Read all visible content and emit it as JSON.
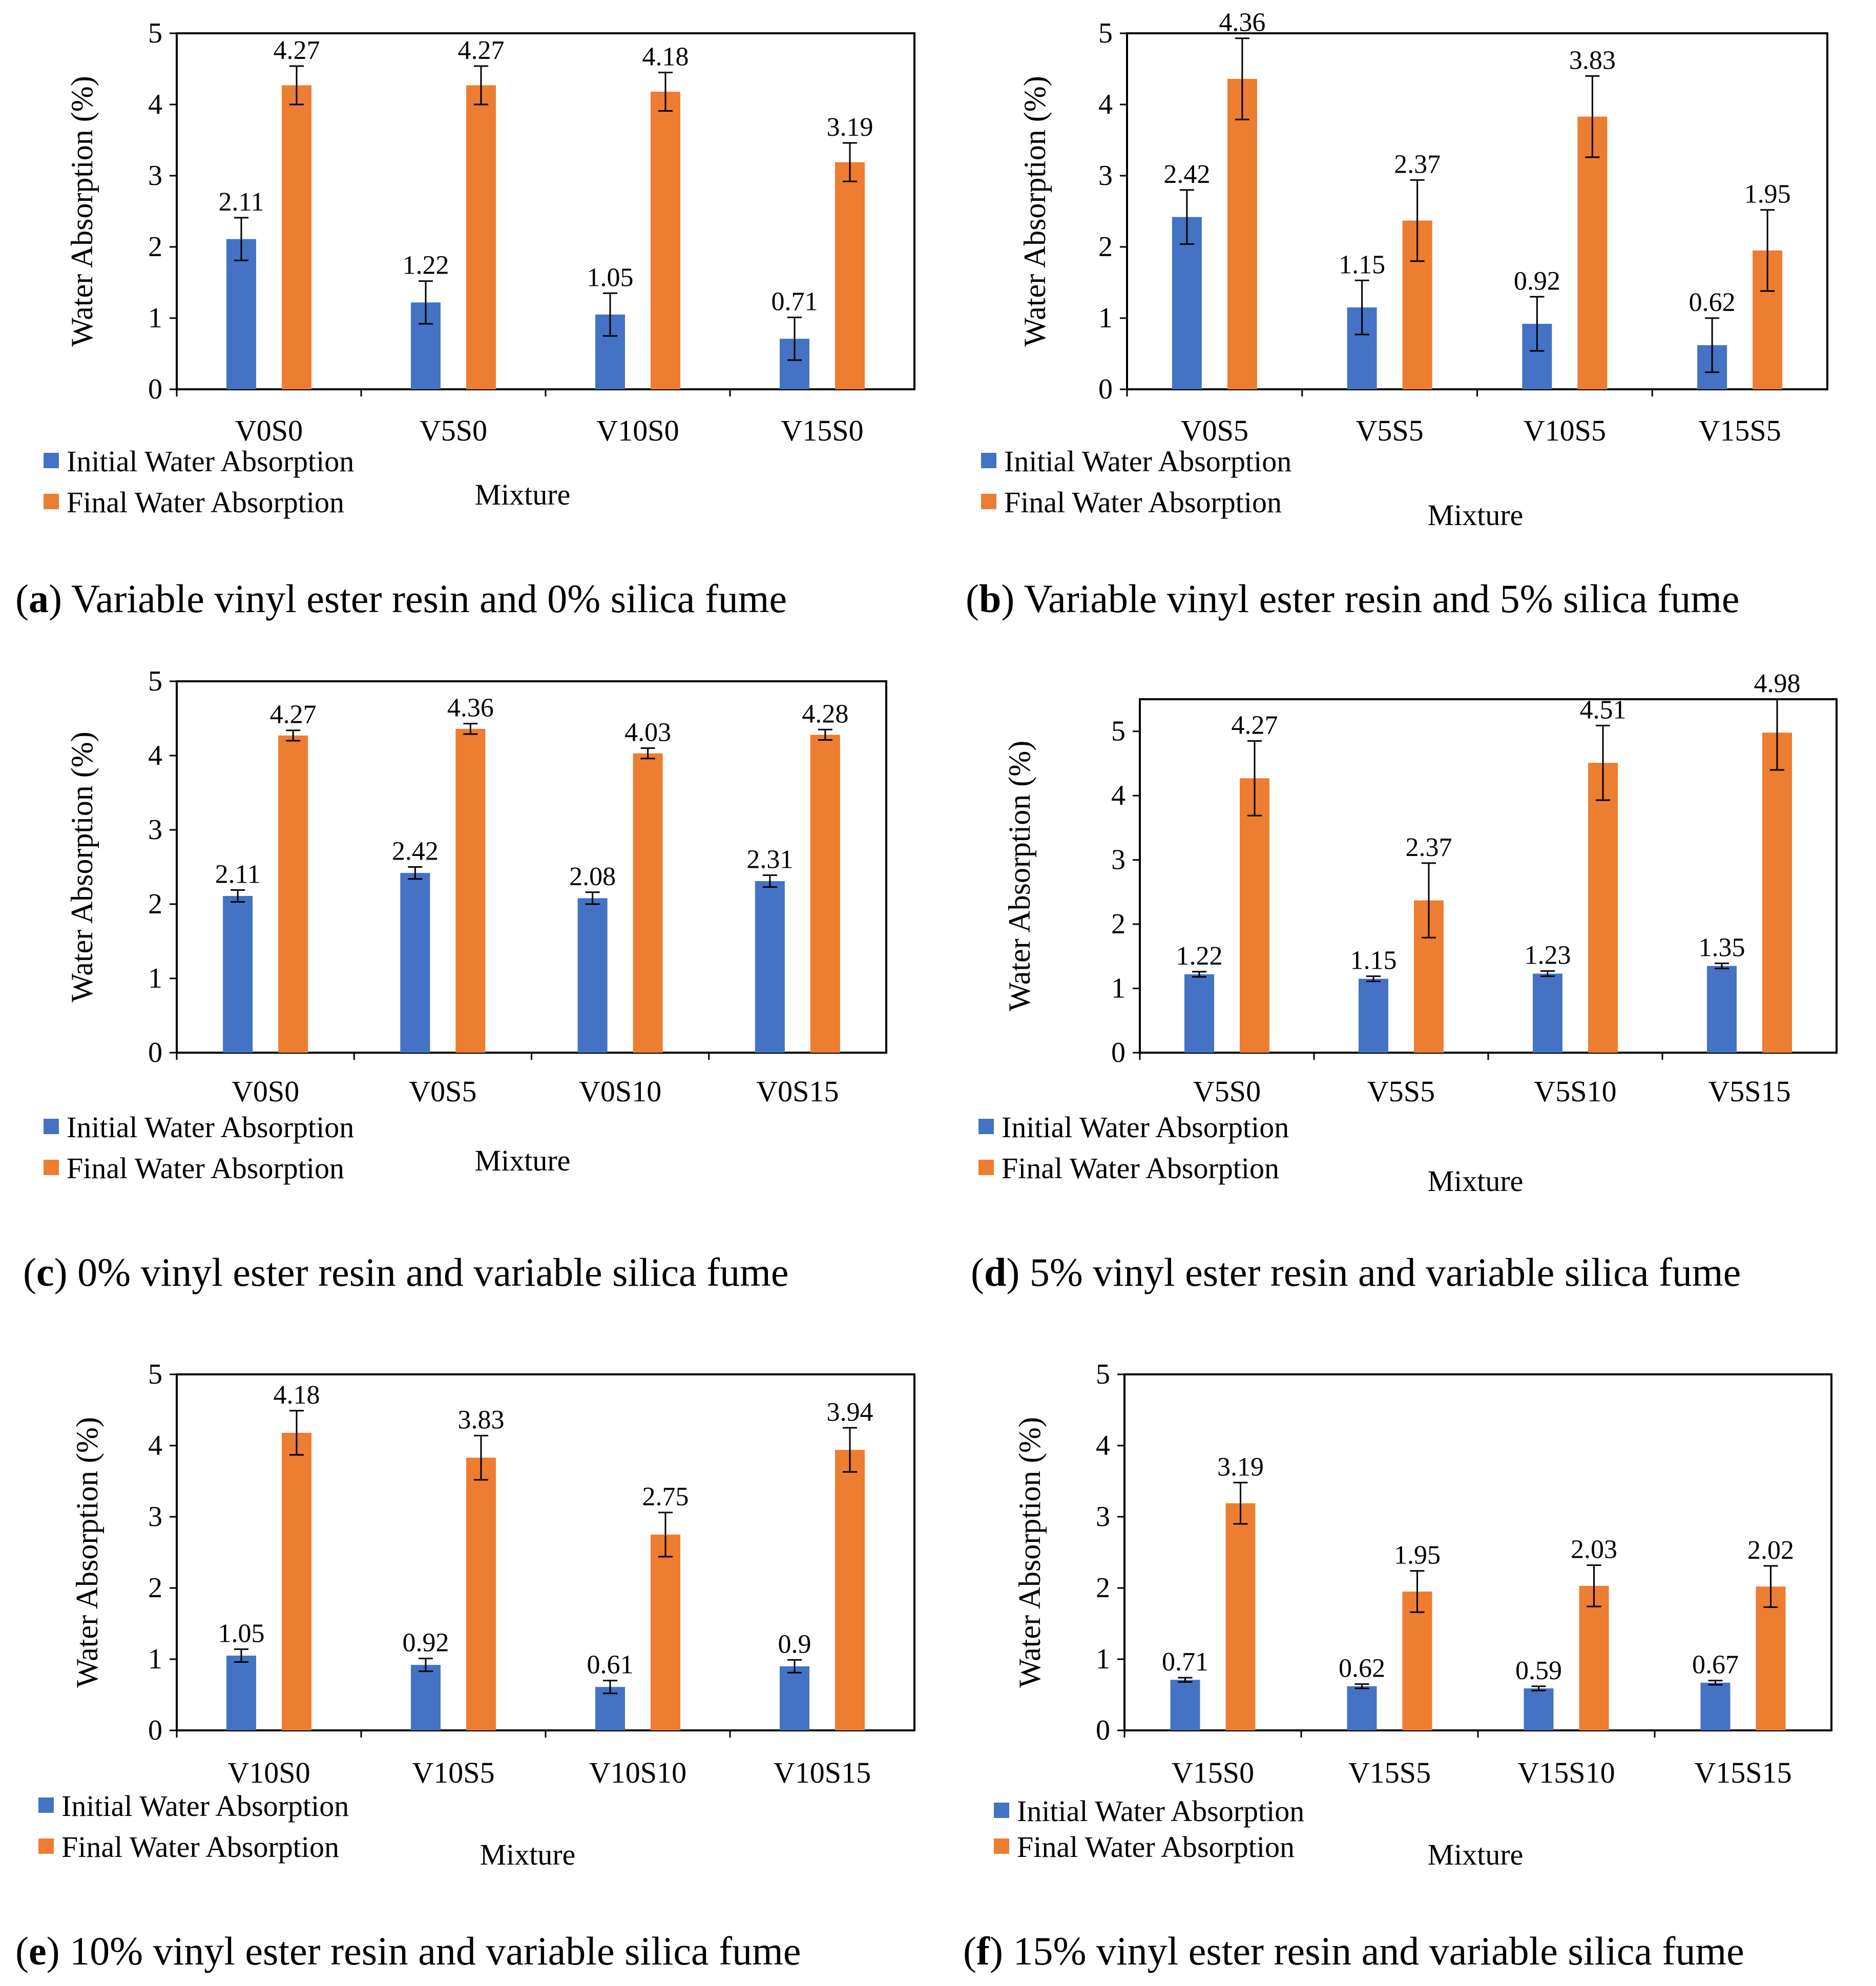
{
  "colors": {
    "initial": "#4472C4",
    "final": "#ED7D31",
    "axis": "#000000"
  },
  "chart_data": [
    {
      "id": "a",
      "type": "bar",
      "caption_letter": "a",
      "caption_text": " Variable vinyl ester resin and 0% silica fume",
      "ylabel": "Water Absorption (%)",
      "xlabel": "Mixture",
      "ylim": [
        0,
        5
      ],
      "yticks": [
        "0",
        "1",
        "2",
        "3",
        "4",
        "5"
      ],
      "categories": [
        "V0S0",
        "V5S0",
        "V10S0",
        "V15S0"
      ],
      "series": [
        {
          "name": "Initial Water Absorption",
          "values": [
            2.11,
            1.22,
            1.05,
            0.71
          ],
          "labels": [
            "2.11",
            "1.22",
            "1.05",
            "0.71"
          ],
          "errors": [
            0.3,
            0.3,
            0.3,
            0.3
          ]
        },
        {
          "name": "Final Water Absorption",
          "values": [
            4.27,
            4.27,
            4.18,
            3.19
          ],
          "labels": [
            "4.27",
            "4.27",
            "4.18",
            "3.19"
          ],
          "errors": [
            0.27,
            0.27,
            0.27,
            0.27
          ]
        }
      ]
    },
    {
      "id": "b",
      "type": "bar",
      "caption_letter": "b",
      "caption_text": " Variable vinyl ester resin and 5% silica fume",
      "ylabel": "Water Absorption (%)",
      "xlabel": "Mixture",
      "ylim": [
        0,
        5
      ],
      "yticks": [
        "0",
        "1",
        "2",
        "3",
        "4",
        "5"
      ],
      "categories": [
        "V0S5",
        "V5S5",
        "V10S5",
        "V15S5"
      ],
      "series": [
        {
          "name": "Initial Water Absorption",
          "values": [
            2.42,
            1.15,
            0.92,
            0.62
          ],
          "labels": [
            "2.42",
            "1.15",
            "0.92",
            "0.62"
          ],
          "errors": [
            0.38,
            0.38,
            0.38,
            0.38
          ]
        },
        {
          "name": "Final Water Absorption",
          "values": [
            4.36,
            2.37,
            3.83,
            1.95
          ],
          "labels": [
            "4.36",
            "2.37",
            "3.83",
            "1.95"
          ],
          "errors": [
            0.57,
            0.57,
            0.57,
            0.57
          ]
        }
      ]
    },
    {
      "id": "c",
      "type": "bar",
      "caption_letter": "c",
      "caption_text": " 0% vinyl ester resin and variable silica fume",
      "ylabel": "Water Absorption (%)",
      "xlabel": "Mixture",
      "ylim": [
        0,
        5
      ],
      "yticks": [
        "0",
        "1",
        "2",
        "3",
        "4",
        "5"
      ],
      "categories": [
        "V0S0",
        "V0S5",
        "V0S10",
        "V0S15"
      ],
      "series": [
        {
          "name": "Initial Water Absorption",
          "values": [
            2.11,
            2.42,
            2.08,
            2.31
          ],
          "labels": [
            "2.11",
            "2.42",
            "2.08",
            "2.31"
          ],
          "errors": [
            0.08,
            0.08,
            0.08,
            0.08
          ]
        },
        {
          "name": "Final Water Absorption",
          "values": [
            4.27,
            4.36,
            4.03,
            4.28
          ],
          "labels": [
            "4.27",
            "4.36",
            "4.03",
            "4.28"
          ],
          "errors": [
            0.07,
            0.07,
            0.07,
            0.07
          ]
        }
      ]
    },
    {
      "id": "d",
      "type": "bar",
      "caption_letter": "d",
      "caption_text": " 5% vinyl ester resin and variable silica fume",
      "ylabel": "Water Absorption (%)",
      "xlabel": "Mixture",
      "ylim": [
        0,
        5.5
      ],
      "yticks": [
        "0",
        "1",
        "2",
        "3",
        "4",
        "5"
      ],
      "categories": [
        "V5S0",
        "V5S5",
        "V5S10",
        "V5S15"
      ],
      "series": [
        {
          "name": "Initial Water Absorption",
          "values": [
            1.22,
            1.15,
            1.23,
            1.35
          ],
          "labels": [
            "1.22",
            "1.15",
            "1.23",
            "1.35"
          ],
          "errors": [
            0.04,
            0.04,
            0.04,
            0.04
          ]
        },
        {
          "name": "Final Water Absorption",
          "values": [
            4.27,
            2.37,
            4.51,
            4.98
          ],
          "labels": [
            "4.27",
            "2.37",
            "4.51",
            "4.98"
          ],
          "errors": [
            0.58,
            0.58,
            0.58,
            0.58
          ]
        }
      ]
    },
    {
      "id": "e",
      "type": "bar",
      "caption_letter": "e",
      "caption_text": " 10% vinyl ester resin and variable silica fume",
      "ylabel": "Water Absorption (%)",
      "xlabel": "Mixture",
      "ylim": [
        0,
        5
      ],
      "yticks": [
        "0",
        "1",
        "2",
        "3",
        "4",
        "5"
      ],
      "categories": [
        "V10S0",
        "V10S5",
        "V10S10",
        "V10S15"
      ],
      "series": [
        {
          "name": "Initial Water Absorption",
          "values": [
            1.05,
            0.92,
            0.61,
            0.9
          ],
          "labels": [
            "1.05",
            "0.92",
            "0.61",
            "0.9"
          ],
          "errors": [
            0.09,
            0.09,
            0.09,
            0.09
          ]
        },
        {
          "name": "Final Water Absorption",
          "values": [
            4.18,
            3.83,
            2.75,
            3.94
          ],
          "labels": [
            "4.18",
            "3.83",
            "2.75",
            "3.94"
          ],
          "errors": [
            0.31,
            0.31,
            0.31,
            0.31
          ]
        }
      ]
    },
    {
      "id": "f",
      "type": "bar",
      "caption_letter": "f",
      "caption_text": " 15% vinyl ester resin and variable silica fume",
      "ylabel": "Water Absorption (%)",
      "xlabel": "Mixture",
      "ylim": [
        0,
        5
      ],
      "yticks": [
        "0",
        "1",
        "2",
        "3",
        "4",
        "5"
      ],
      "categories": [
        "V15S0",
        "V15S5",
        "V15S10",
        "V15S15"
      ],
      "series": [
        {
          "name": "Initial Water Absorption",
          "values": [
            0.71,
            0.62,
            0.59,
            0.67
          ],
          "labels": [
            "0.71",
            "0.62",
            "0.59",
            "0.67"
          ],
          "errors": [
            0.03,
            0.03,
            0.03,
            0.03
          ]
        },
        {
          "name": "Final Water Absorption",
          "values": [
            3.19,
            1.95,
            2.03,
            2.02
          ],
          "labels": [
            "3.19",
            "1.95",
            "2.03",
            "2.02"
          ],
          "errors": [
            0.29,
            0.29,
            0.29,
            0.29
          ]
        }
      ]
    }
  ]
}
